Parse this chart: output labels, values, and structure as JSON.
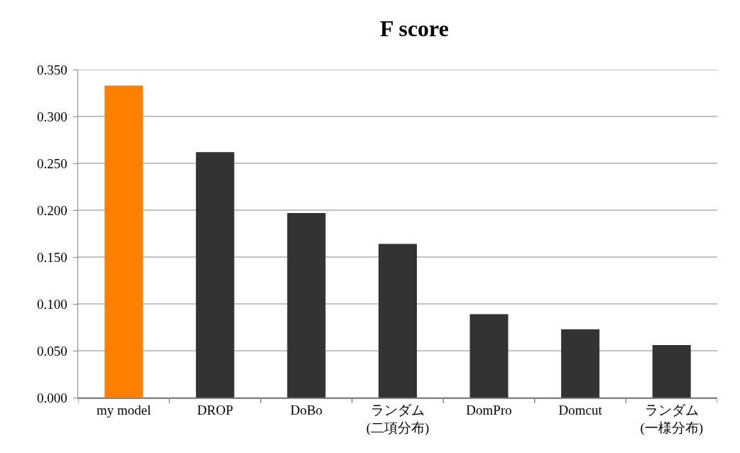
{
  "chart_data": {
    "type": "bar",
    "title": "F score",
    "categories": [
      "my model",
      "DROP",
      "DoBo",
      "ランダム\n(二項分布)",
      "DomPro",
      "Domcut",
      "ランダム\n(一様分布)"
    ],
    "values": [
      0.333,
      0.262,
      0.197,
      0.164,
      0.089,
      0.073,
      0.056
    ],
    "colors": [
      "#ff7f00",
      "#333333",
      "#333333",
      "#333333",
      "#333333",
      "#333333",
      "#333333"
    ],
    "ylim": [
      0,
      0.35
    ],
    "yticks": [
      {
        "value": 0,
        "label": "0.000"
      },
      {
        "value": 0.05,
        "label": "0.050"
      },
      {
        "value": 0.1,
        "label": "0.100"
      },
      {
        "value": 0.15,
        "label": "0.150"
      },
      {
        "value": 0.2,
        "label": "0.200"
      },
      {
        "value": 0.25,
        "label": "0.250"
      },
      {
        "value": 0.3,
        "label": "0.300"
      },
      {
        "value": 0.35,
        "label": "0.350"
      }
    ],
    "grid": "y",
    "legend": false
  }
}
